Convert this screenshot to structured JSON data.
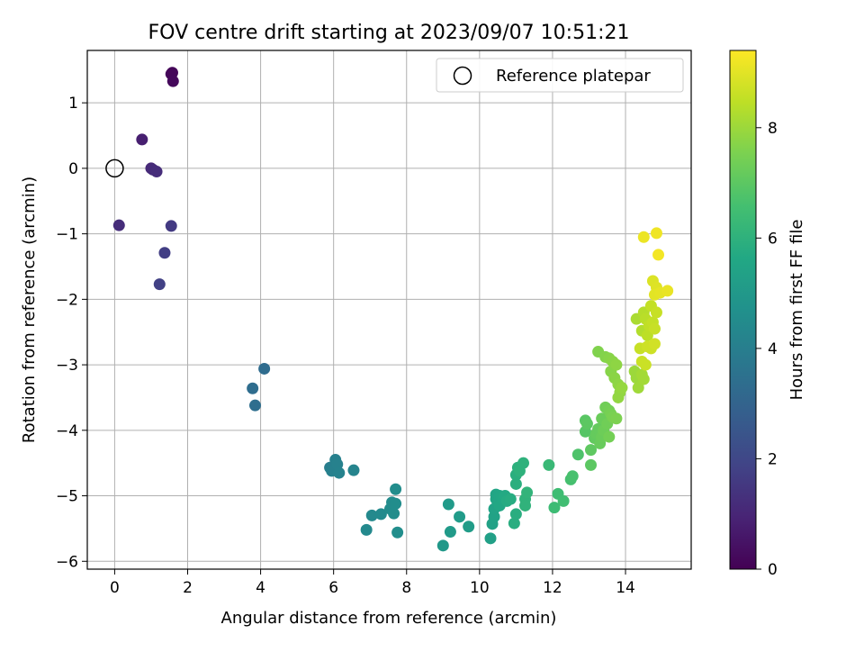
{
  "chart_data": {
    "type": "scatter",
    "title": "FOV centre drift starting at 2023/09/07 10:51:21",
    "xlabel": "Angular distance from reference (arcmin)",
    "ylabel": "Rotation from reference (arcmin)",
    "xlim": [
      -0.75,
      15.8
    ],
    "ylim": [
      -6.12,
      1.8
    ],
    "xticks": [
      0,
      2,
      4,
      6,
      8,
      10,
      12,
      14
    ],
    "yticks": [
      1,
      0,
      -1,
      -2,
      -3,
      -4,
      -5,
      -6
    ],
    "grid": true,
    "legend": {
      "position": "top-right",
      "entries": [
        "Reference platepar"
      ]
    },
    "reference_point": {
      "x": 0,
      "y": 0
    },
    "colorbar": {
      "label": "Hours from first FF file",
      "min": 0,
      "max": 9.4,
      "ticks": [
        0,
        2,
        4,
        6,
        8
      ],
      "colormap": "viridis"
    },
    "points": [
      {
        "x": 1.58,
        "y": 1.46,
        "c": 0.1
      },
      {
        "x": 1.55,
        "y": 1.44,
        "c": 0.15
      },
      {
        "x": 1.6,
        "y": 1.33,
        "c": 0.2
      },
      {
        "x": 0.75,
        "y": 0.44,
        "c": 0.8
      },
      {
        "x": 1.0,
        "y": 0.0,
        "c": 1.1
      },
      {
        "x": 1.05,
        "y": -0.02,
        "c": 1.15
      },
      {
        "x": 1.15,
        "y": -0.05,
        "c": 1.2
      },
      {
        "x": 0.12,
        "y": -0.87,
        "c": 1.2
      },
      {
        "x": 1.55,
        "y": -0.88,
        "c": 1.6
      },
      {
        "x": 1.37,
        "y": -1.29,
        "c": 1.7
      },
      {
        "x": 1.23,
        "y": -1.77,
        "c": 1.8
      },
      {
        "x": 4.1,
        "y": -3.06,
        "c": 3.3
      },
      {
        "x": 3.78,
        "y": -3.36,
        "c": 3.35
      },
      {
        "x": 3.85,
        "y": -3.62,
        "c": 3.4
      },
      {
        "x": 5.9,
        "y": -4.57,
        "c": 4.0
      },
      {
        "x": 5.95,
        "y": -4.62,
        "c": 4.05
      },
      {
        "x": 6.05,
        "y": -4.45,
        "c": 4.05
      },
      {
        "x": 6.1,
        "y": -4.52,
        "c": 4.1
      },
      {
        "x": 6.15,
        "y": -4.65,
        "c": 4.15
      },
      {
        "x": 6.55,
        "y": -4.61,
        "c": 4.2
      },
      {
        "x": 6.9,
        "y": -5.52,
        "c": 4.4
      },
      {
        "x": 7.05,
        "y": -5.3,
        "c": 4.4
      },
      {
        "x": 7.3,
        "y": -5.28,
        "c": 4.45
      },
      {
        "x": 7.55,
        "y": -5.2,
        "c": 4.5
      },
      {
        "x": 7.6,
        "y": -5.1,
        "c": 4.5
      },
      {
        "x": 7.7,
        "y": -5.12,
        "c": 4.55
      },
      {
        "x": 7.65,
        "y": -5.27,
        "c": 4.55
      },
      {
        "x": 7.7,
        "y": -4.9,
        "c": 4.55
      },
      {
        "x": 7.75,
        "y": -5.56,
        "c": 4.6
      },
      {
        "x": 9.0,
        "y": -5.76,
        "c": 5.0
      },
      {
        "x": 9.15,
        "y": -5.13,
        "c": 5.05
      },
      {
        "x": 9.2,
        "y": -5.55,
        "c": 5.05
      },
      {
        "x": 9.45,
        "y": -5.32,
        "c": 5.1
      },
      {
        "x": 9.7,
        "y": -5.47,
        "c": 5.15
      },
      {
        "x": 10.3,
        "y": -5.65,
        "c": 5.3
      },
      {
        "x": 10.35,
        "y": -5.43,
        "c": 5.35
      },
      {
        "x": 10.4,
        "y": -5.32,
        "c": 5.4
      },
      {
        "x": 10.4,
        "y": -5.2,
        "c": 5.45
      },
      {
        "x": 10.45,
        "y": -5.05,
        "c": 5.5
      },
      {
        "x": 10.45,
        "y": -4.98,
        "c": 5.5
      },
      {
        "x": 10.5,
        "y": -5.1,
        "c": 5.55
      },
      {
        "x": 10.55,
        "y": -5.0,
        "c": 5.55
      },
      {
        "x": 10.55,
        "y": -5.15,
        "c": 5.6
      },
      {
        "x": 10.6,
        "y": -5.02,
        "c": 5.6
      },
      {
        "x": 10.65,
        "y": -5.05,
        "c": 5.65
      },
      {
        "x": 10.7,
        "y": -5.0,
        "c": 5.7
      },
      {
        "x": 10.75,
        "y": -5.08,
        "c": 5.75
      },
      {
        "x": 10.85,
        "y": -5.05,
        "c": 5.8
      },
      {
        "x": 10.95,
        "y": -5.42,
        "c": 5.85
      },
      {
        "x": 11.0,
        "y": -5.28,
        "c": 5.85
      },
      {
        "x": 11.0,
        "y": -4.82,
        "c": 5.9
      },
      {
        "x": 11.0,
        "y": -4.68,
        "c": 5.9
      },
      {
        "x": 11.05,
        "y": -4.57,
        "c": 5.95
      },
      {
        "x": 11.1,
        "y": -4.62,
        "c": 6.0
      },
      {
        "x": 11.2,
        "y": -4.5,
        "c": 6.0
      },
      {
        "x": 11.25,
        "y": -5.05,
        "c": 6.05
      },
      {
        "x": 11.25,
        "y": -5.15,
        "c": 6.05
      },
      {
        "x": 11.3,
        "y": -4.95,
        "c": 6.1
      },
      {
        "x": 11.9,
        "y": -4.53,
        "c": 6.3
      },
      {
        "x": 12.05,
        "y": -5.18,
        "c": 6.4
      },
      {
        "x": 12.15,
        "y": -4.97,
        "c": 6.45
      },
      {
        "x": 12.3,
        "y": -5.08,
        "c": 6.5
      },
      {
        "x": 12.5,
        "y": -4.75,
        "c": 6.6
      },
      {
        "x": 12.55,
        "y": -4.7,
        "c": 6.65
      },
      {
        "x": 12.7,
        "y": -4.37,
        "c": 6.75
      },
      {
        "x": 12.9,
        "y": -4.02,
        "c": 6.9
      },
      {
        "x": 12.9,
        "y": -3.85,
        "c": 6.95
      },
      {
        "x": 12.95,
        "y": -3.9,
        "c": 7.0
      },
      {
        "x": 13.05,
        "y": -4.53,
        "c": 7.0
      },
      {
        "x": 13.05,
        "y": -4.3,
        "c": 7.05
      },
      {
        "x": 13.15,
        "y": -4.12,
        "c": 7.1
      },
      {
        "x": 13.2,
        "y": -4.05,
        "c": 7.15
      },
      {
        "x": 13.25,
        "y": -3.98,
        "c": 7.15
      },
      {
        "x": 13.3,
        "y": -4.2,
        "c": 7.2
      },
      {
        "x": 13.35,
        "y": -4.1,
        "c": 7.25
      },
      {
        "x": 13.35,
        "y": -3.82,
        "c": 7.25
      },
      {
        "x": 13.4,
        "y": -4.0,
        "c": 7.3
      },
      {
        "x": 13.45,
        "y": -3.65,
        "c": 7.35
      },
      {
        "x": 13.5,
        "y": -3.9,
        "c": 7.35
      },
      {
        "x": 13.55,
        "y": -4.1,
        "c": 7.4
      },
      {
        "x": 13.55,
        "y": -3.7,
        "c": 7.4
      },
      {
        "x": 13.6,
        "y": -3.75,
        "c": 7.45
      },
      {
        "x": 13.65,
        "y": -3.8,
        "c": 7.5
      },
      {
        "x": 13.75,
        "y": -3.82,
        "c": 7.55
      },
      {
        "x": 13.25,
        "y": -2.8,
        "c": 7.6
      },
      {
        "x": 13.45,
        "y": -2.88,
        "c": 7.65
      },
      {
        "x": 13.55,
        "y": -2.9,
        "c": 7.7
      },
      {
        "x": 13.6,
        "y": -3.1,
        "c": 7.7
      },
      {
        "x": 13.65,
        "y": -2.95,
        "c": 7.75
      },
      {
        "x": 13.7,
        "y": -3.2,
        "c": 7.75
      },
      {
        "x": 13.75,
        "y": -3.0,
        "c": 7.8
      },
      {
        "x": 13.8,
        "y": -3.3,
        "c": 7.8
      },
      {
        "x": 13.8,
        "y": -3.5,
        "c": 7.85
      },
      {
        "x": 13.85,
        "y": -3.42,
        "c": 7.85
      },
      {
        "x": 13.9,
        "y": -3.35,
        "c": 7.9
      },
      {
        "x": 14.25,
        "y": -3.1,
        "c": 8.0
      },
      {
        "x": 14.3,
        "y": -3.2,
        "c": 8.0
      },
      {
        "x": 14.35,
        "y": -3.35,
        "c": 8.05
      },
      {
        "x": 14.45,
        "y": -3.15,
        "c": 8.1
      },
      {
        "x": 14.5,
        "y": -3.22,
        "c": 8.1
      },
      {
        "x": 14.3,
        "y": -2.3,
        "c": 8.2
      },
      {
        "x": 14.45,
        "y": -2.48,
        "c": 8.3
      },
      {
        "x": 14.5,
        "y": -2.2,
        "c": 8.35
      },
      {
        "x": 14.55,
        "y": -2.3,
        "c": 8.4
      },
      {
        "x": 14.6,
        "y": -2.55,
        "c": 8.45
      },
      {
        "x": 14.65,
        "y": -2.4,
        "c": 8.5
      },
      {
        "x": 14.7,
        "y": -2.1,
        "c": 8.55
      },
      {
        "x": 14.75,
        "y": -2.35,
        "c": 8.55
      },
      {
        "x": 14.8,
        "y": -2.45,
        "c": 8.6
      },
      {
        "x": 14.85,
        "y": -2.2,
        "c": 8.6
      },
      {
        "x": 14.4,
        "y": -2.75,
        "c": 8.6
      },
      {
        "x": 14.45,
        "y": -2.95,
        "c": 8.65
      },
      {
        "x": 14.55,
        "y": -3.0,
        "c": 8.65
      },
      {
        "x": 14.6,
        "y": -2.72,
        "c": 8.7
      },
      {
        "x": 14.7,
        "y": -2.75,
        "c": 8.7
      },
      {
        "x": 14.8,
        "y": -2.68,
        "c": 8.75
      },
      {
        "x": 14.75,
        "y": -1.72,
        "c": 8.9
      },
      {
        "x": 14.85,
        "y": -1.82,
        "c": 8.95
      },
      {
        "x": 14.8,
        "y": -1.93,
        "c": 9.0
      },
      {
        "x": 14.95,
        "y": -1.9,
        "c": 9.05
      },
      {
        "x": 15.15,
        "y": -1.87,
        "c": 9.1
      },
      {
        "x": 14.5,
        "y": -1.05,
        "c": 9.15
      },
      {
        "x": 14.85,
        "y": -0.99,
        "c": 9.2
      },
      {
        "x": 14.9,
        "y": -1.32,
        "c": 9.25
      }
    ]
  }
}
